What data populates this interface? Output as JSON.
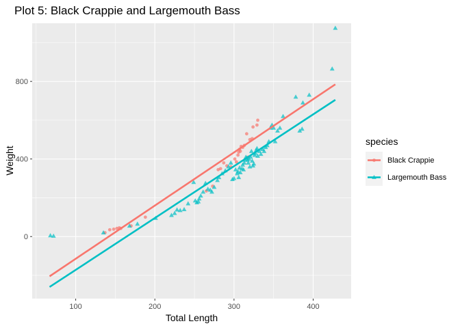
{
  "chart_data": {
    "type": "scatter",
    "title": "Plot 5: Black Crappie and Largemouth Bass",
    "xlabel": "Total Length",
    "ylabel": "Weight",
    "xlim": [
      45,
      448
    ],
    "ylim": [
      -320,
      1100
    ],
    "x_ticks": [
      100,
      200,
      300,
      400
    ],
    "y_ticks": [
      0,
      400,
      800
    ],
    "x_tick_labels": [
      "100",
      "200",
      "300",
      "400"
    ],
    "y_tick_labels": [
      "0",
      "400",
      "800"
    ],
    "grid": true,
    "legend": {
      "title": "species",
      "position": "right"
    },
    "series": [
      {
        "name": "Black Crappie",
        "color": "#F8766D",
        "marker": "circle",
        "fit_line": {
          "x": [
            67,
            428
          ],
          "y": [
            -205,
            785
          ]
        },
        "points": [
          [
            137,
            20
          ],
          [
            143,
            35
          ],
          [
            148,
            38
          ],
          [
            152,
            42
          ],
          [
            155,
            45
          ],
          [
            157,
            42
          ],
          [
            170,
            55
          ],
          [
            188,
            100
          ],
          [
            265,
            235
          ],
          [
            273,
            260
          ],
          [
            280,
            345
          ],
          [
            283,
            350
          ],
          [
            287,
            380
          ],
          [
            291,
            365
          ],
          [
            296,
            360
          ],
          [
            301,
            400
          ],
          [
            303,
            385
          ],
          [
            305,
            420
          ],
          [
            306,
            435
          ],
          [
            307,
            450
          ],
          [
            308,
            440
          ],
          [
            309,
            465
          ],
          [
            311,
            460
          ],
          [
            313,
            470
          ],
          [
            316,
            530
          ],
          [
            318,
            410
          ],
          [
            320,
            500
          ],
          [
            323,
            505
          ],
          [
            324,
            565
          ],
          [
            329,
            575
          ],
          [
            330,
            600
          ]
        ]
      },
      {
        "name": "Largemouth Bass",
        "color": "#00BFC4",
        "marker": "triangle",
        "fit_line": {
          "x": [
            67,
            428
          ],
          "y": [
            -260,
            705
          ]
        },
        "points": [
          [
            68,
            5
          ],
          [
            72,
            3
          ],
          [
            135,
            20
          ],
          [
            168,
            55
          ],
          [
            178,
            65
          ],
          [
            201,
            95
          ],
          [
            221,
            110
          ],
          [
            225,
            120
          ],
          [
            228,
            138
          ],
          [
            232,
            135
          ],
          [
            237,
            140
          ],
          [
            242,
            170
          ],
          [
            249,
            280
          ],
          [
            251,
            185
          ],
          [
            253,
            175
          ],
          [
            255,
            180
          ],
          [
            256,
            195
          ],
          [
            258,
            210
          ],
          [
            261,
            230
          ],
          [
            264,
            275
          ],
          [
            267,
            245
          ],
          [
            270,
            240
          ],
          [
            272,
            230
          ],
          [
            275,
            255
          ],
          [
            279,
            290
          ],
          [
            281,
            305
          ],
          [
            285,
            325
          ],
          [
            289,
            340
          ],
          [
            293,
            360
          ],
          [
            296,
            380
          ],
          [
            298,
            295
          ],
          [
            300,
            300
          ],
          [
            302,
            345
          ],
          [
            304,
            325
          ],
          [
            305,
            335
          ],
          [
            306,
            305
          ],
          [
            307,
            355
          ],
          [
            308,
            330
          ],
          [
            310,
            350
          ],
          [
            311,
            370
          ],
          [
            312,
            345
          ],
          [
            313,
            380
          ],
          [
            314,
            395
          ],
          [
            315,
            410
          ],
          [
            316,
            405
          ],
          [
            317,
            395
          ],
          [
            318,
            380
          ],
          [
            319,
            400
          ],
          [
            320,
            360
          ],
          [
            321,
            410
          ],
          [
            322,
            440
          ],
          [
            323,
            390
          ],
          [
            324,
            365
          ],
          [
            325,
            375
          ],
          [
            326,
            420
          ],
          [
            327,
            430
          ],
          [
            328,
            445
          ],
          [
            329,
            455
          ],
          [
            330,
            415
          ],
          [
            332,
            440
          ],
          [
            334,
            425
          ],
          [
            336,
            450
          ],
          [
            338,
            440
          ],
          [
            340,
            460
          ],
          [
            342,
            470
          ],
          [
            344,
            490
          ],
          [
            346,
            560
          ],
          [
            348,
            575
          ],
          [
            350,
            560
          ],
          [
            352,
            490
          ],
          [
            355,
            545
          ],
          [
            358,
            560
          ],
          [
            362,
            620
          ],
          [
            378,
            720
          ],
          [
            383,
            545
          ],
          [
            386,
            555
          ],
          [
            387,
            690
          ],
          [
            395,
            730
          ],
          [
            424,
            865
          ],
          [
            428,
            1075
          ]
        ]
      }
    ]
  }
}
